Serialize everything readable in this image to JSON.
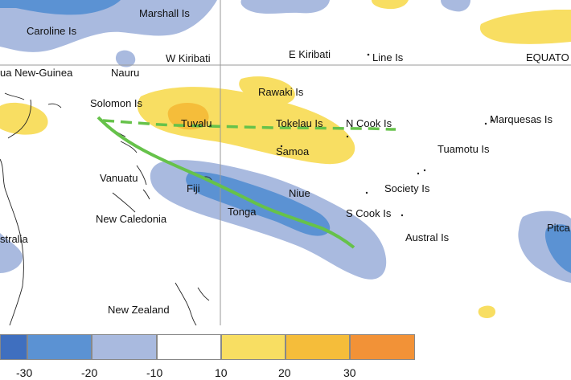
{
  "colors": {
    "dry_strong": "#3f6fbf",
    "dry_mid": "#5b92d3",
    "dry_light": "#a9badf",
    "neutral": "#ffffff",
    "wet_light": "#f8de62",
    "wet_mid": "#f5bd3a",
    "wet_strong": "#f29237",
    "spcz_observed": "#66c24a",
    "spcz_climatology": "#66c24a"
  },
  "map_labels": {
    "marshall": "Marshall Is",
    "caroline": "Caroline Is",
    "w_kiribati": "W Kiribati",
    "e_kiribati": "E Kiribati",
    "line": "Line Is",
    "equator": "EQUATO",
    "png": "ua New-Guinea",
    "nauru": "Nauru",
    "solomon": "Solomon Is",
    "rawaki": "Rawaki Is",
    "tuvalu": "Tuvalu",
    "tokelau": "Tokelau Is",
    "n_cook": "N Cook Is",
    "marquesas": "Marquesas Is",
    "samoa": "Samoa",
    "tuamotu": "Tuamotu Is",
    "vanuatu": "Vanuatu",
    "fiji": "Fiji",
    "niue": "Niue",
    "society": "Society Is",
    "new_caledonia": "New Caledonia",
    "tonga": "Tonga",
    "s_cook": "S Cook Is",
    "australia": "stralia",
    "austral": "Austral Is",
    "pitcairn": "Pitca",
    "new_zealand": "New Zealand"
  },
  "legend": {
    "ticks": [
      "-30",
      "-20",
      "-10",
      "10",
      "20",
      "30"
    ]
  }
}
